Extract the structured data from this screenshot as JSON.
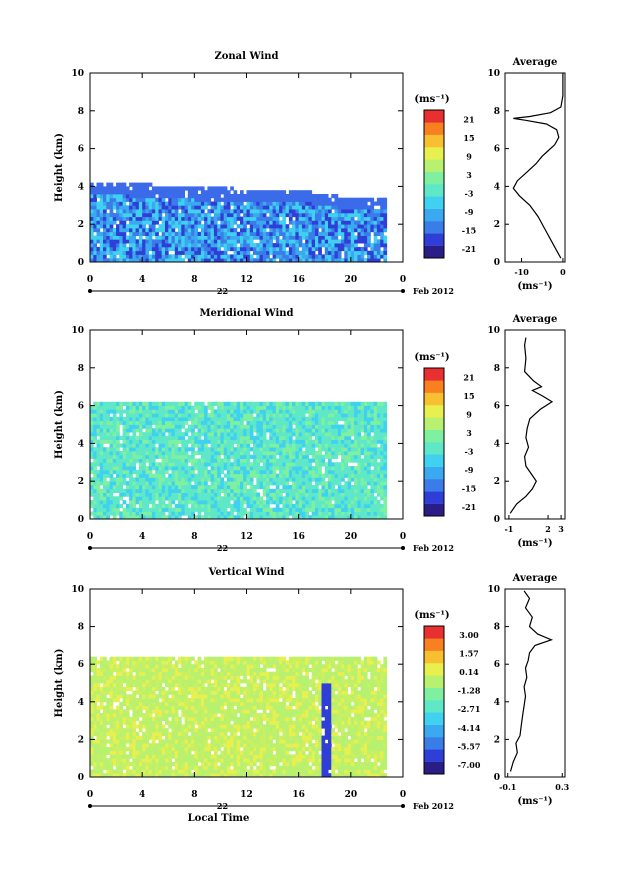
{
  "chart_data": [
    {
      "type": "heatmap",
      "title": "Zonal Wind",
      "ylabel": "Height (km)",
      "x_ticks": [
        "0",
        "4",
        "8",
        "12",
        "16",
        "20",
        "0"
      ],
      "date_label": "22",
      "date_suffix": "Feb 2012",
      "y_ticks": [
        "0",
        "2",
        "4",
        "6",
        "8",
        "10"
      ],
      "xlim": [
        0,
        24
      ],
      "ylim": [
        0,
        10
      ],
      "colorbar": {
        "unit_label": "(ms⁻¹)",
        "ticks": [
          "21",
          "15",
          "9",
          "3",
          "-3",
          "-9",
          "-15",
          "-21"
        ],
        "min": -24,
        "max": 24,
        "colors": [
          "#2b1d86",
          "#2f3ed6",
          "#3b7de8",
          "#3aa9ef",
          "#40d0f0",
          "#5ee8c8",
          "#7ef0a0",
          "#b8f070",
          "#e8f050",
          "#f8c030",
          "#f88020",
          "#e83030"
        ]
      },
      "profile": {
        "title": "Average",
        "xlabel": "(ms⁻¹)",
        "x_ticks": [
          "-10",
          "0"
        ],
        "xlim": [
          -14,
          0.5
        ],
        "points": [
          [
            -0.5,
            0.2
          ],
          [
            -1.5,
            0.6
          ],
          [
            -3,
            1.2
          ],
          [
            -4.5,
            1.8
          ],
          [
            -6,
            2.4
          ],
          [
            -8,
            3
          ],
          [
            -10.5,
            3.5
          ],
          [
            -12,
            3.9
          ],
          [
            -11,
            4.3
          ],
          [
            -8.5,
            4.8
          ],
          [
            -6.5,
            5.2
          ],
          [
            -5,
            5.6
          ],
          [
            -3.5,
            5.9
          ],
          [
            -2,
            6.2
          ],
          [
            -1,
            6.6
          ],
          [
            -1.5,
            7
          ],
          [
            -4,
            7.3
          ],
          [
            -9,
            7.5
          ],
          [
            -12,
            7.6
          ],
          [
            -8,
            7.7
          ],
          [
            -3,
            7.9
          ],
          [
            -0.5,
            8.2
          ],
          [
            0,
            8.8
          ],
          [
            0,
            9.5
          ],
          [
            0,
            10
          ]
        ]
      },
      "field": {
        "top": [
          4.1,
          4.1,
          4.1,
          4.0,
          4.0,
          3.9,
          3.9,
          3.9,
          3.8,
          3.8,
          3.8,
          3.7,
          3.7,
          3.7,
          3.6,
          3.6,
          3.6,
          3.5,
          3.5,
          3.4,
          3.4,
          3.4,
          3.3,
          3.3
        ],
        "colors": [
          "#40d0f0",
          "#3aa9ef",
          "#3b7de8",
          "#2f3ed6"
        ]
      }
    },
    {
      "type": "heatmap",
      "title": "Meridional Wind",
      "ylabel": "Height (km)",
      "x_ticks": [
        "0",
        "4",
        "8",
        "12",
        "16",
        "20",
        "0"
      ],
      "date_label": "22",
      "date_suffix": "Feb 2012",
      "y_ticks": [
        "0",
        "2",
        "4",
        "6",
        "8",
        "10"
      ],
      "xlim": [
        0,
        24
      ],
      "ylim": [
        0,
        10
      ],
      "colorbar": {
        "unit_label": "(ms⁻¹)",
        "ticks": [
          "21",
          "15",
          "9",
          "3",
          "-3",
          "-9",
          "-15",
          "-21"
        ],
        "min": -24,
        "max": 24,
        "colors": [
          "#2b1d86",
          "#2f3ed6",
          "#3b7de8",
          "#3aa9ef",
          "#40d0f0",
          "#5ee8c8",
          "#7ef0a0",
          "#b8f070",
          "#e8f050",
          "#f8c030",
          "#f88020",
          "#e83030"
        ]
      },
      "profile": {
        "title": "Average",
        "xlabel": "(ms⁻¹)",
        "x_ticks": [
          "-1",
          "2",
          "3"
        ],
        "xlim": [
          -1.3,
          3.3
        ],
        "points": [
          [
            -0.9,
            0.3
          ],
          [
            -0.4,
            0.8
          ],
          [
            0.3,
            1.2
          ],
          [
            0.8,
            1.6
          ],
          [
            1.1,
            2.0
          ],
          [
            0.7,
            2.4
          ],
          [
            0.3,
            2.8
          ],
          [
            0.2,
            3.3
          ],
          [
            0.5,
            3.8
          ],
          [
            0.3,
            4.3
          ],
          [
            0.4,
            4.8
          ],
          [
            0.6,
            5.3
          ],
          [
            1.4,
            5.8
          ],
          [
            2.3,
            6.2
          ],
          [
            1.6,
            6.5
          ],
          [
            0.8,
            6.8
          ],
          [
            1.5,
            7.0
          ],
          [
            0.9,
            7.3
          ],
          [
            0.2,
            7.8
          ],
          [
            0.3,
            8.5
          ],
          [
            0.2,
            9.2
          ],
          [
            0.3,
            9.6
          ]
        ]
      },
      "field": {
        "top": [
          6,
          6,
          6,
          6,
          6,
          6,
          6,
          6,
          6,
          6,
          6,
          6,
          6,
          6,
          6,
          6,
          6,
          6,
          6,
          6,
          6,
          6,
          6,
          6
        ],
        "colors": [
          "#5ee8c8",
          "#7ef0a0",
          "#40d0f0",
          "#5ee8c8"
        ]
      }
    },
    {
      "type": "heatmap",
      "title": "Vertical Wind",
      "ylabel": "Height (km)",
      "xlabel": "Local Time",
      "x_ticks": [
        "0",
        "4",
        "8",
        "12",
        "16",
        "20",
        "0"
      ],
      "date_label": "22",
      "date_suffix": "Feb 2012",
      "y_ticks": [
        "0",
        "2",
        "4",
        "6",
        "8",
        "10"
      ],
      "xlim": [
        0,
        24
      ],
      "ylim": [
        0,
        10
      ],
      "colorbar": {
        "unit_label": "(ms⁻¹)",
        "ticks": [
          "3.00",
          "1.57",
          "0.14",
          "-1.28",
          "-2.71",
          "-4.14",
          "-5.57",
          "-7.00"
        ],
        "min": -7.7,
        "max": 3.7,
        "colors": [
          "#2b1d86",
          "#2f3ed6",
          "#3b7de8",
          "#3aa9ef",
          "#40d0f0",
          "#5ee8c8",
          "#7ef0a0",
          "#b8f070",
          "#e8f050",
          "#f8c030",
          "#f88020",
          "#e83030"
        ]
      },
      "profile": {
        "title": "Average",
        "xlabel": "(ms⁻¹)",
        "x_ticks": [
          "-0.1",
          "0.3"
        ],
        "xlim": [
          -0.12,
          0.32
        ],
        "points": [
          [
            -0.08,
            0.3
          ],
          [
            -0.06,
            0.8
          ],
          [
            -0.03,
            1.3
          ],
          [
            -0.04,
            1.8
          ],
          [
            -0.01,
            2.2
          ],
          [
            0.0,
            2.8
          ],
          [
            0.01,
            3.3
          ],
          [
            0.02,
            3.8
          ],
          [
            0.03,
            4.3
          ],
          [
            0.02,
            4.8
          ],
          [
            0.04,
            5.3
          ],
          [
            0.03,
            5.8
          ],
          [
            0.05,
            6.2
          ],
          [
            0.06,
            6.6
          ],
          [
            0.1,
            7.0
          ],
          [
            0.22,
            7.3
          ],
          [
            0.12,
            7.6
          ],
          [
            0.06,
            8.0
          ],
          [
            0.08,
            8.5
          ],
          [
            0.03,
            9.0
          ],
          [
            0.06,
            9.5
          ],
          [
            0.02,
            9.9
          ]
        ]
      },
      "field": {
        "top": [
          6.3,
          6.3,
          6.3,
          6.3,
          6.3,
          6.3,
          6.3,
          6.3,
          6.3,
          6.3,
          6.3,
          6.3,
          6.3,
          6.3,
          6.3,
          6.3,
          6.3,
          6.3,
          6.3,
          6.3,
          6.3,
          6.3,
          6.3,
          6.3
        ],
        "colors": [
          "#b8f070",
          "#c8f060",
          "#e8f050",
          "#b8f070"
        ]
      }
    }
  ]
}
